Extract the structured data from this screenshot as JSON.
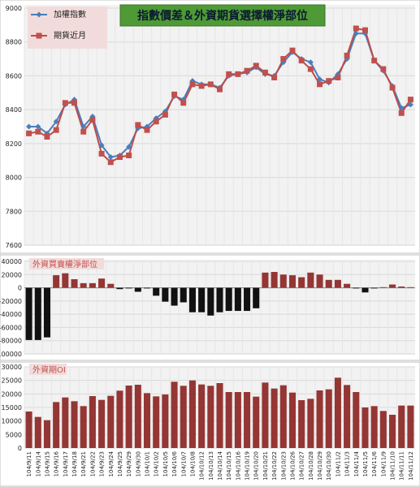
{
  "colors": {
    "index_line": "#4a7ebb",
    "futures_line": "#be4b48",
    "futures_marker": "#c0504d",
    "pos_bar": "#943634",
    "neg_bar": "#111111",
    "oi_bar": "#943634",
    "title_bg": "#4f9a36",
    "label_pink": "#f2dcdb",
    "label_red": "#c0504d",
    "panel_bg": "#f2f2f2",
    "grid": "#d9d9d9"
  },
  "dates": [
    "104/9/11",
    "104/9/14",
    "104/9/15",
    "104/9/16",
    "104/9/17",
    "104/9/18",
    "104/9/21",
    "104/9/22",
    "104/9/23",
    "104/9/24",
    "104/9/25",
    "104/9/29",
    "104/9/30",
    "104/10/1",
    "104/10/2",
    "104/10/5",
    "104/10/6",
    "104/10/7",
    "104/10/8",
    "104/10/12",
    "104/10/13",
    "104/10/14",
    "104/10/15",
    "104/10/16",
    "104/10/19",
    "104/10/20",
    "104/10/21",
    "104/10/22",
    "104/10/23",
    "104/10/26",
    "104/10/27",
    "104/10/28",
    "104/10/29",
    "104/10/30",
    "104/11/2",
    "104/11/3",
    "104/11/4",
    "104/11/5",
    "104/11/6",
    "104/11/9",
    "104/11/10",
    "104/11/11",
    "104/11/12"
  ],
  "chart_data": [
    {
      "type": "line",
      "title": "指數價差＆外資期貨選擇權淨部位",
      "ylim": [
        7600,
        9000
      ],
      "yticks": [
        7600,
        7800,
        8000,
        8200,
        8400,
        8600,
        8800,
        9000
      ],
      "grid": true,
      "legend_position": "top-left",
      "series": [
        {
          "name": "加權指數",
          "values": [
            8300,
            8300,
            8260,
            8330,
            8430,
            8460,
            8300,
            8360,
            8190,
            8120,
            8130,
            8180,
            8290,
            8300,
            8350,
            8390,
            8480,
            8460,
            8570,
            8550,
            8550,
            8530,
            8600,
            8610,
            8620,
            8650,
            8610,
            8600,
            8680,
            8740,
            8700,
            8680,
            8580,
            8560,
            8610,
            8700,
            8850,
            8850,
            8690,
            8630,
            8540,
            8410,
            8430
          ]
        },
        {
          "name": "期貨近月",
          "values": [
            8260,
            8270,
            8240,
            8280,
            8440,
            8440,
            8270,
            8340,
            8140,
            8090,
            8120,
            8130,
            8310,
            8280,
            8330,
            8370,
            8490,
            8440,
            8550,
            8540,
            8550,
            8520,
            8610,
            8610,
            8630,
            8660,
            8620,
            8590,
            8700,
            8750,
            8690,
            8640,
            8550,
            8570,
            8590,
            8720,
            8880,
            8870,
            8690,
            8640,
            8530,
            8380,
            8460
          ]
        }
      ]
    },
    {
      "type": "bar",
      "title": "外資買賣權淨部位",
      "ylim": [
        -100000,
        40000
      ],
      "yticks": [
        -100000,
        -80000,
        -60000,
        -40000,
        -20000,
        0,
        20000,
        40000
      ],
      "grid": true,
      "values": [
        -79000,
        -79000,
        -75000,
        19000,
        22000,
        13000,
        7000,
        7000,
        14000,
        6000,
        -2000,
        -1000,
        -6000,
        -1000,
        -12000,
        -21000,
        -27000,
        -22000,
        -37000,
        -37000,
        -42000,
        -37000,
        -35000,
        -35000,
        -35000,
        -31000,
        23000,
        24000,
        20000,
        19000,
        16000,
        23000,
        20000,
        12000,
        12000,
        6000,
        -1000,
        -7000,
        -1000,
        1000,
        5000,
        2000,
        1000
      ]
    },
    {
      "type": "bar",
      "title": "外資期OI",
      "ylim": [
        0,
        30000
      ],
      "yticks": [
        0,
        5000,
        10000,
        15000,
        20000,
        25000,
        30000
      ],
      "grid": true,
      "values": [
        13500,
        11500,
        10300,
        17000,
        18700,
        17300,
        15500,
        19200,
        17800,
        19300,
        21200,
        23100,
        23400,
        20300,
        19100,
        19800,
        24500,
        23000,
        25000,
        23500,
        23000,
        24000,
        20700,
        20700,
        20700,
        19000,
        24200,
        22000,
        23200,
        20500,
        17700,
        18200,
        21300,
        21700,
        26000,
        23300,
        20700,
        15000,
        15500,
        13700,
        12300,
        15700,
        15700
      ]
    }
  ]
}
